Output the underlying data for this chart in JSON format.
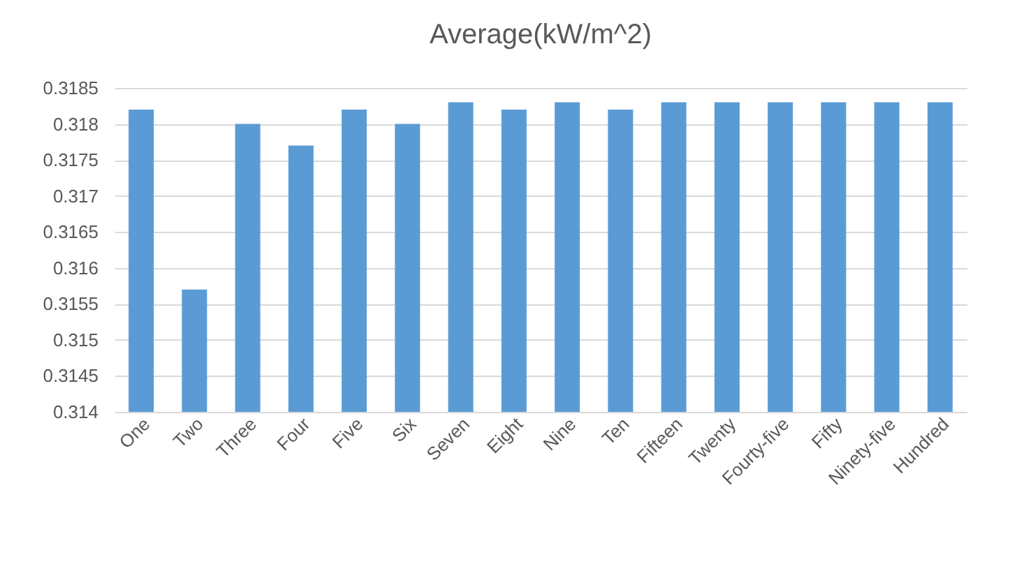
{
  "chart_data": {
    "type": "bar",
    "title": "Average(kW/m^2)",
    "categories": [
      "One",
      "Two",
      "Three",
      "Four",
      "Five",
      "Six",
      "Seven",
      "Eight",
      "Nine",
      "Ten",
      "Fifteen",
      "Twenty",
      "Fourty-five",
      "Fifty",
      "Ninety-five",
      "Hundred"
    ],
    "values": [
      0.3182,
      0.3157,
      0.318,
      0.3177,
      0.3182,
      0.318,
      0.3183,
      0.3182,
      0.3183,
      0.3182,
      0.3183,
      0.3183,
      0.3183,
      0.3183,
      0.3183,
      0.3183
    ],
    "color": "#5b9bd5",
    "ylim": [
      0.314,
      0.3185
    ],
    "yticks": [
      0.314,
      0.3145,
      0.315,
      0.3155,
      0.316,
      0.3165,
      0.317,
      0.3175,
      0.318,
      0.3185
    ],
    "grid": "y"
  }
}
